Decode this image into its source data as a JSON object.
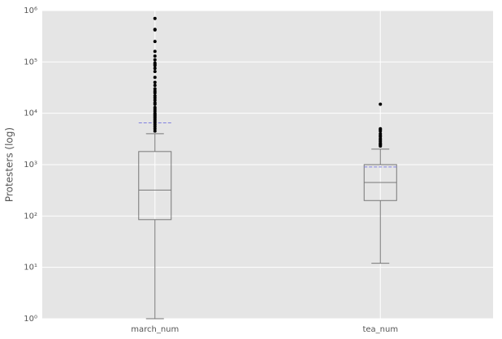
{
  "chart_data": {
    "type": "box",
    "ylabel": "Protesters (log)",
    "log_scale": true,
    "grid": true,
    "background": "#e5e5e5",
    "grid_color": "#ffffff",
    "box_color": "#777777",
    "mean_color": "#8080e0",
    "flier_color": "#000000",
    "categories": [
      "march_num",
      "tea_num"
    ],
    "ylim": [
      1,
      1000000
    ],
    "yticks": [
      {
        "value": 1,
        "label": "10⁰"
      },
      {
        "value": 10,
        "label": "10¹"
      },
      {
        "value": 100,
        "label": "10²"
      },
      {
        "value": 1000,
        "label": "10³"
      },
      {
        "value": 10000,
        "label": "10⁴"
      },
      {
        "value": 100000,
        "label": "10⁵"
      },
      {
        "value": 1000000,
        "label": "10⁶"
      }
    ],
    "boxes": [
      {
        "whislo": 1,
        "q1": 85,
        "median": 320,
        "q3": 1800,
        "whishi": 4000,
        "mean": 6500,
        "fliers": [
          700000,
          430000,
          420000,
          250000,
          160000,
          130000,
          110000,
          95000,
          90000,
          85000,
          75000,
          65000,
          50000,
          40000,
          35000,
          30000,
          27000,
          25000,
          22000,
          20000,
          18000,
          16000,
          15000,
          13000,
          12000,
          11000,
          10000,
          9500,
          9000,
          8500,
          8000,
          7500,
          7000,
          6500,
          6000,
          5500,
          5000,
          4500
        ]
      },
      {
        "whislo": 12,
        "q1": 200,
        "median": 450,
        "q3": 1000,
        "whishi": 2000,
        "mean": 900,
        "fliers": [
          15000,
          5000,
          4800,
          4500,
          4000,
          3700,
          3500,
          3200,
          3000,
          2800,
          2600,
          2500,
          2400,
          2300
        ]
      }
    ]
  }
}
